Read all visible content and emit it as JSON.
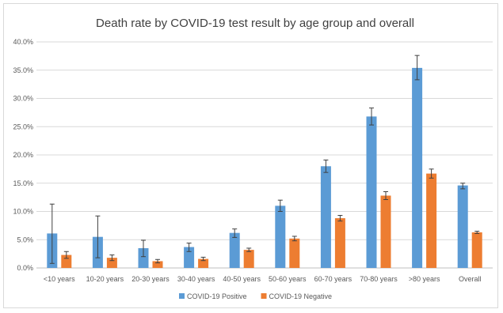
{
  "chart_data": {
    "type": "bar",
    "title": "Death rate by COVID-19 test result by age group and overall",
    "xlabel": "",
    "ylabel": "",
    "ylim": [
      0,
      40
    ],
    "y_ticks": [
      "0.0%",
      "5.0%",
      "10.0%",
      "15.0%",
      "20.0%",
      "25.0%",
      "30.0%",
      "35.0%",
      "40.0%"
    ],
    "grid": true,
    "legend_position": "bottom",
    "categories": [
      "<10 years",
      "10-20 years",
      "20-30 years",
      "30-40 years",
      "40-50 years",
      "50-60 years",
      "60-70 years",
      "70-80 years",
      ">80 years",
      "Overall"
    ],
    "series": [
      {
        "name": "COVID-19 Positive",
        "color": "#5b9bd5",
        "values": [
          6.1,
          5.5,
          3.5,
          3.7,
          6.2,
          11.0,
          18.0,
          26.8,
          35.4,
          14.6
        ],
        "error_low": [
          0.8,
          1.8,
          2.0,
          2.9,
          5.4,
          10.0,
          16.9,
          25.3,
          33.3,
          14.0
        ],
        "error_high": [
          11.3,
          9.2,
          4.9,
          4.4,
          6.9,
          12.0,
          19.1,
          28.3,
          37.6,
          15.0
        ]
      },
      {
        "name": "COVID-19 Negative",
        "color": "#ed7d31",
        "values": [
          2.3,
          1.8,
          1.2,
          1.6,
          3.2,
          5.2,
          8.8,
          12.8,
          16.7,
          6.3
        ],
        "error_low": [
          1.7,
          1.3,
          0.9,
          1.3,
          2.9,
          4.8,
          8.3,
          12.1,
          15.9,
          6.1
        ],
        "error_high": [
          2.9,
          2.3,
          1.5,
          1.9,
          3.5,
          5.6,
          9.3,
          13.5,
          17.5,
          6.5
        ]
      }
    ]
  }
}
